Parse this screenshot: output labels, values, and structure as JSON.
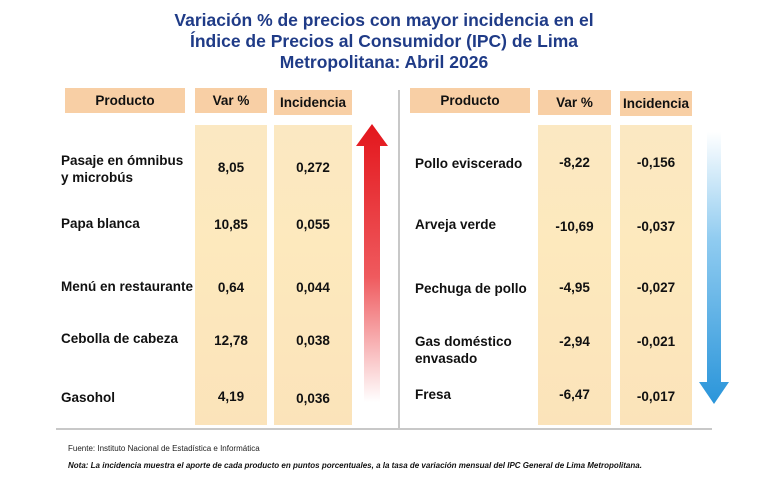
{
  "title": {
    "line1": "Variación % de precios con mayor incidencia en el",
    "line2": "Índice de Precios al Consumidor (IPC) de Lima",
    "line3": "Metropolitana: Abril 2026"
  },
  "headers": {
    "producto": "Producto",
    "var": "Var %",
    "incidencia": "Incidencia"
  },
  "chart_data": {
    "type": "table",
    "columns": [
      "Producto",
      "Var %",
      "Incidencia"
    ],
    "increases": [
      {
        "producto": [
          "Pasaje en ómnibus",
          "y microbús"
        ],
        "var": "8,05",
        "incidencia": "0,272"
      },
      {
        "producto": [
          "Papa blanca"
        ],
        "var": "10,85",
        "incidencia": "0,055"
      },
      {
        "producto": [
          "Menú en restaurante"
        ],
        "var": "0,64",
        "incidencia": "0,044"
      },
      {
        "producto": [
          "Cebolla de cabeza"
        ],
        "var": "12,78",
        "incidencia": "0,038"
      },
      {
        "producto": [
          "Gasohol"
        ],
        "var": "4,19",
        "incidencia": "0,036"
      }
    ],
    "decreases": [
      {
        "producto": [
          "Pollo eviscerado"
        ],
        "var": "-8,22",
        "incidencia": "-0,156"
      },
      {
        "producto": [
          "Arveja verde"
        ],
        "var": "-10,69",
        "incidencia": "-0,037"
      },
      {
        "producto": [
          "Pechuga de pollo"
        ],
        "var": "-4,95",
        "incidencia": "-0,027"
      },
      {
        "producto": [
          "Gas doméstico",
          "envasado"
        ],
        "var": "-2,94",
        "incidencia": "-0,021"
      },
      {
        "producto": [
          "Fresa"
        ],
        "var": "-6,47",
        "incidencia": "-0,017"
      }
    ]
  },
  "footer": {
    "source": "Fuente: Instituto  Nacional de Estadística  e Informática",
    "note": "Nota: La incidencia muestra  el aporte de cada producto en puntos porcentuales,  a la tasa de variación mensual  del IPC General de Lima Metropolitana."
  },
  "colors": {
    "title": "#1f3b87",
    "header_bg": "#f8cfa5",
    "column_bg": "#fde9bd",
    "up_arrow": "#e8262b",
    "down_arrow": "#2f9bdc"
  }
}
